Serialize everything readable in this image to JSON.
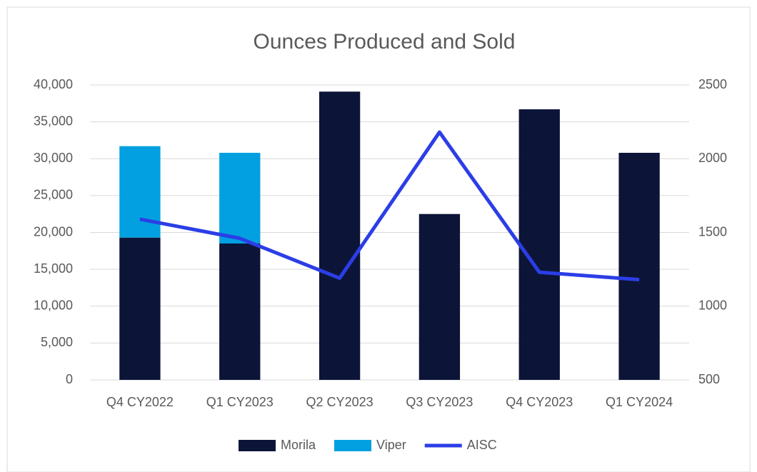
{
  "chart_data": {
    "type": "bar",
    "stacked": true,
    "title": "Ounces Produced and Sold",
    "categories": [
      "Q4 CY2022",
      "Q1 CY2023",
      "Q2 CY2023",
      "Q3 CY2023",
      "Q4 CY2023",
      "Q1 CY2024"
    ],
    "series": [
      {
        "name": "Morila",
        "color": "#0c1538",
        "type": "bar",
        "values": [
          19300,
          18500,
          39100,
          22500,
          36700,
          30800
        ]
      },
      {
        "name": "Viper",
        "color": "#02a0e0",
        "type": "bar",
        "values": [
          12400,
          12300,
          null,
          null,
          null,
          null
        ]
      },
      {
        "name": "AISC",
        "color": "#2b3ee6",
        "type": "line",
        "axis": "y2",
        "values": [
          1590,
          1460,
          1190,
          2180,
          1230,
          1180
        ]
      }
    ],
    "ylim": [
      0,
      40000
    ],
    "yticks": [
      0,
      {
        "value": 5000,
        "label": "5,000"
      },
      {
        "value": 10000,
        "label": "10,000"
      },
      {
        "value": 15000,
        "label": "15,000"
      },
      {
        "value": 20000,
        "label": "20,000"
      },
      {
        "value": 25000,
        "label": "25,000"
      },
      {
        "value": 30000,
        "label": "30,000"
      },
      {
        "value": 35000,
        "label": "35,000"
      },
      {
        "value": 40000,
        "label": "40,000"
      }
    ],
    "y2lim": [
      500,
      2500
    ],
    "y2ticks": [
      500,
      1000,
      1500,
      2000,
      2500
    ],
    "grid": true,
    "legend": "bottom"
  }
}
